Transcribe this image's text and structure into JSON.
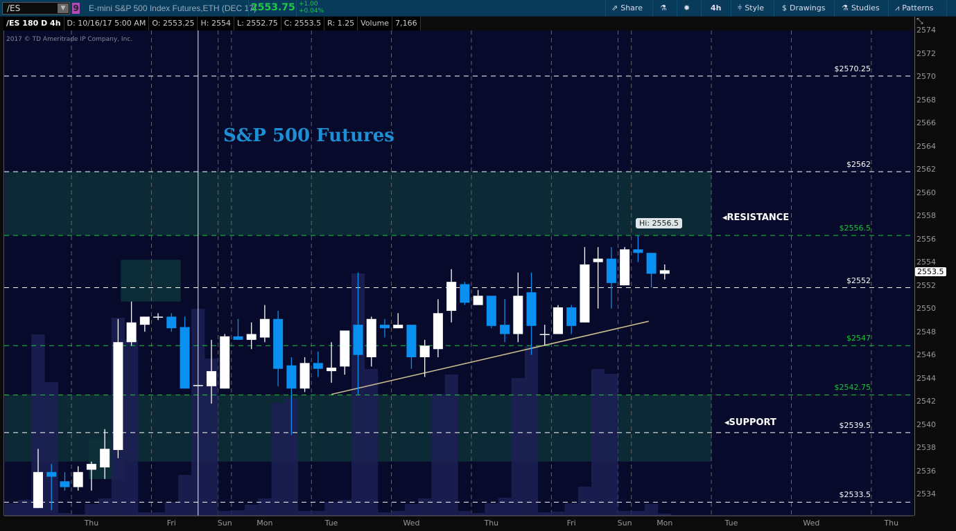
{
  "toolbar": {
    "symbol": "/ES",
    "badge": "9",
    "description": "E-mini S&P 500 Index Futures,ETH (DEC 17)",
    "price": "2553.75",
    "change": "+1.00",
    "change_pct": "+0.04%",
    "share": "Share",
    "timeframe": "4h",
    "style": "Style",
    "drawings": "Drawings",
    "studies": "Studies",
    "patterns": "Patterns"
  },
  "info": {
    "chart": "/ES 180 D 4h",
    "date": "D: 10/16/17 5:00 AM",
    "open": "O: 2553.25",
    "high": "H: 2554",
    "low": "L: 2552.75",
    "close": "C: 2553.5",
    "range": "R: 1.25",
    "volume_label": "Volume",
    "volume": "7,166"
  },
  "copyright": "2017 © TD Ameritrade IP Company, Inc.",
  "annotations": {
    "title": "S&P 500 Futures",
    "resistance": "RESISTANCE",
    "support": "SUPPORT",
    "hi_label": "Hi: 2556.5",
    "current_price": "2553.5"
  },
  "colors": {
    "up": "#ffffff",
    "down": "#0a90f0",
    "green_level": "#18c83a",
    "background": "#070a2a",
    "zone": "#0c2a36"
  },
  "chart_data": {
    "type": "candlestick",
    "ylim": [
      2533,
      2575
    ],
    "yticks": [
      2534,
      2536,
      2538,
      2540,
      2542,
      2544,
      2546,
      2548,
      2550,
      2552,
      2554,
      2556,
      2558,
      2560,
      2562,
      2564,
      2566,
      2568,
      2570,
      2572,
      2574
    ],
    "xticks": [
      {
        "label": "Thu",
        "slot": 5
      },
      {
        "label": "Fri",
        "slot": 11
      },
      {
        "label": "Sun",
        "slot": 15
      },
      {
        "label": "Mon",
        "slot": 18
      },
      {
        "label": "Tue",
        "slot": 23
      },
      {
        "label": "Wed",
        "slot": 29
      },
      {
        "label": "Thu",
        "slot": 35
      },
      {
        "label": "Fri",
        "slot": 41
      },
      {
        "label": "Sun",
        "slot": 45
      },
      {
        "label": "Mon",
        "slot": 48
      },
      {
        "label": "Tue",
        "slot": 53
      },
      {
        "label": "Wed",
        "slot": 59
      },
      {
        "label": "Thu",
        "slot": 65
      }
    ],
    "day_separators": [
      3.5,
      9.5,
      14.5,
      15.5,
      21.5,
      27.5,
      33.5,
      39.5,
      44.5,
      45.5,
      51.5,
      57.5,
      63.5
    ],
    "levels": [
      {
        "label": "$2570.25",
        "price": 2570.25,
        "color": "white"
      },
      {
        "label": "$2562",
        "price": 2562,
        "color": "white"
      },
      {
        "label": "$2556.5",
        "price": 2556.5,
        "color": "green"
      },
      {
        "label": "$2552",
        "price": 2552,
        "color": "white"
      },
      {
        "label": "$2547",
        "price": 2547,
        "color": "green"
      },
      {
        "label": "$2542.75",
        "price": 2542.75,
        "color": "green"
      },
      {
        "label": "$2539.5",
        "price": 2539.5,
        "color": "white"
      },
      {
        "label": "$2533.5",
        "price": 2533.5,
        "color": "white"
      }
    ],
    "zones": [
      {
        "name": "resistance",
        "from": 2556.5,
        "to": 2562,
        "slots": [
          -1.5,
          51.5
        ]
      },
      {
        "name": "support",
        "from": 2537,
        "to": 2542.75,
        "slots": [
          -1.5,
          51.5
        ]
      },
      {
        "name": "box",
        "from": 2550.8,
        "to": 2554.4,
        "slots": [
          7.2,
          11.7
        ]
      },
      {
        "name": "box",
        "from": 2535.5,
        "to": 2539,
        "slots": [
          4.8,
          7.5
        ]
      }
    ],
    "trendline": {
      "from": {
        "slot": 23,
        "price": 2542.8
      },
      "to": {
        "slot": 46.8,
        "price": 2549.1
      }
    },
    "crosshair_slot": 13,
    "candles": [
      [
        2533,
        2538.1,
        2533,
        2536.1
      ],
      [
        2536.1,
        2536.8,
        2532.8,
        2535.7
      ],
      [
        2535.3,
        2536.1,
        2534.5,
        2534.8
      ],
      [
        2534.8,
        2536.6,
        2534.5,
        2536.1
      ],
      [
        2536.3,
        2537,
        2534.5,
        2536.8
      ],
      [
        2536.5,
        2539.8,
        2535.5,
        2538.1
      ],
      [
        2538,
        2549.3,
        2537.3,
        2547.3
      ],
      [
        2547.3,
        2550.8,
        2547,
        2549
      ],
      [
        2548.8,
        2549.5,
        2548.2,
        2549.5
      ],
      [
        2549.5,
        2549.8,
        2549.2,
        2549.5
      ],
      [
        2549.5,
        2549.8,
        2548.2,
        2548.5
      ],
      [
        2548.6,
        2549.5,
        2543.3,
        2543.3
      ],
      [
        2543.6,
        2543.6,
        2543.6,
        2543.6
      ],
      [
        2543.5,
        2547.5,
        2542,
        2544.8
      ],
      [
        2543.3,
        2548,
        2543.3,
        2547.8
      ],
      [
        2547.8,
        2549.3,
        2547.5,
        2547.5
      ],
      [
        2547.5,
        2549,
        2546.7,
        2548
      ],
      [
        2547.7,
        2550.5,
        2547.3,
        2549.3
      ],
      [
        2549.3,
        2550,
        2543.5,
        2545
      ],
      [
        2545.3,
        2546,
        2539.3,
        2543.3
      ],
      [
        2543.3,
        2546,
        2543,
        2545.5
      ],
      [
        2545.5,
        2546.5,
        2544.3,
        2545
      ],
      [
        2544.8,
        2547.3,
        2543.8,
        2545.1
      ],
      [
        2545.2,
        2548.3,
        2544.5,
        2548.3
      ],
      [
        2548.8,
        2553.3,
        2542.8,
        2546.2
      ],
      [
        2546,
        2549.5,
        2545.2,
        2549.3
      ],
      [
        2548.8,
        2549.3,
        2547.7,
        2548.5
      ],
      [
        2548.5,
        2549.8,
        2548.5,
        2548.8
      ],
      [
        2548.8,
        2548.8,
        2545,
        2546
      ],
      [
        2546,
        2547.5,
        2544.3,
        2547
      ],
      [
        2546.7,
        2551,
        2546,
        2549.8
      ],
      [
        2550,
        2553.6,
        2549,
        2552.5
      ],
      [
        2552.3,
        2552.5,
        2550.5,
        2550.7
      ],
      [
        2550.5,
        2551.8,
        2550.5,
        2551.3
      ],
      [
        2551.3,
        2551.3,
        2548.5,
        2548.7
      ],
      [
        2548.8,
        2551,
        2547.3,
        2548
      ],
      [
        2548,
        2553.3,
        2547.3,
        2551.3
      ],
      [
        2551.6,
        2553.3,
        2546.2,
        2548.7
      ],
      [
        2548,
        2548.8,
        2547,
        2548
      ],
      [
        2548,
        2550.5,
        2548,
        2550.3
      ],
      [
        2550.3,
        2550.5,
        2548,
        2548.7
      ],
      [
        2549,
        2555.5,
        2549,
        2554
      ],
      [
        2554.2,
        2555.5,
        2550.2,
        2554.5
      ],
      [
        2554.5,
        2555.5,
        2550.2,
        2552.4
      ],
      [
        2552.2,
        2555.5,
        2552.2,
        2555.3
      ],
      [
        2555.3,
        2556.5,
        2554.2,
        2555
      ],
      [
        2555,
        2555,
        2552,
        2553.2
      ],
      [
        2553.2,
        2554,
        2552.7,
        2553.5
      ]
    ],
    "volume_start_slot": -1,
    "volume": [
      18,
      23,
      262,
      193,
      4,
      2,
      17,
      25,
      286,
      254,
      5,
      5,
      20,
      59,
      299,
      227,
      7,
      8,
      16,
      25,
      163,
      169,
      7,
      7,
      20,
      23,
      350,
      212,
      5,
      7,
      17,
      25,
      176,
      204,
      7,
      4,
      18,
      26,
      199,
      245,
      5,
      6,
      18,
      42,
      212,
      205,
      7,
      7,
      17,
      3
    ]
  }
}
